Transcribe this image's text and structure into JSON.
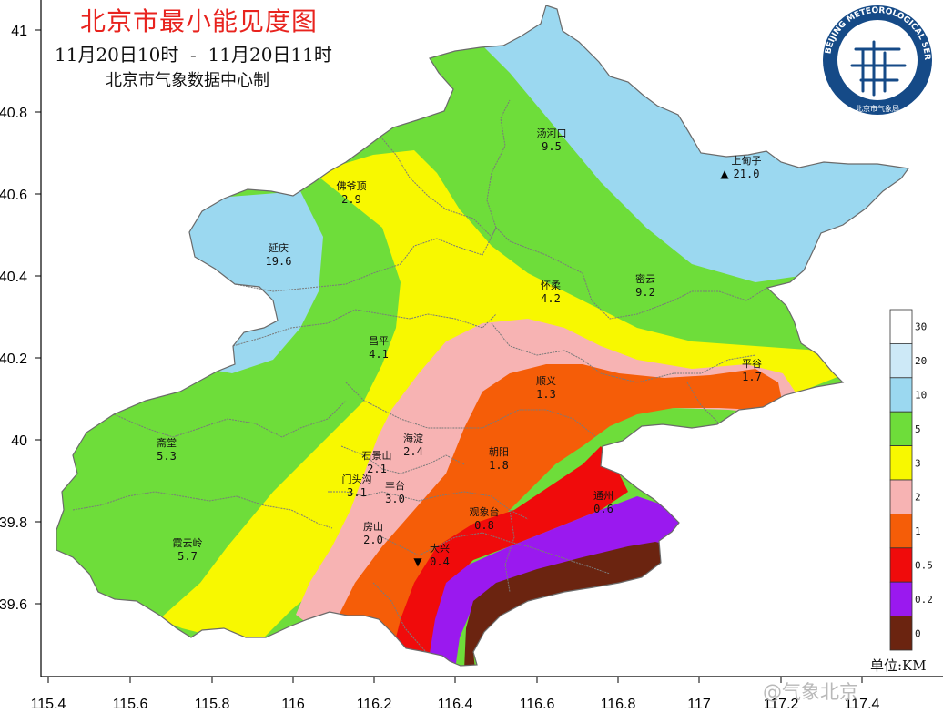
{
  "map": {
    "title": "北京市最小能见度图",
    "subtitle": "11月20日10时  -  11月20日11时",
    "credit": "北京市气象数据中心制",
    "unit_label": "单位:KM",
    "watermark": "@气象北京",
    "logo": {
      "text": "BEIJING METEOROLOGICAL SERVICE",
      "sub": "北京市气象局"
    },
    "x_axis_ticks": [
      "115.4",
      "115.6",
      "115.8",
      "116",
      "116.2",
      "116.4",
      "116.6",
      "116.8",
      "117",
      "117.2",
      "117.4"
    ],
    "y_axis_ticks": [
      "41",
      "40.8",
      "40.6",
      "40.4",
      "40.2",
      "40",
      "39.8",
      "39.6"
    ],
    "legend": [
      {
        "label": "30",
        "color": "#ffffff"
      },
      {
        "label": "20",
        "color": "#cde9f7"
      },
      {
        "label": "10",
        "color": "#9bd8f0"
      },
      {
        "label": "5",
        "color": "#6edd3a"
      },
      {
        "label": "3",
        "color": "#f8f800"
      },
      {
        "label": "2",
        "color": "#f7b3b3"
      },
      {
        "label": "1",
        "color": "#f55d08"
      },
      {
        "label": "0.5",
        "color": "#f00b0b"
      },
      {
        "label": "0.2",
        "color": "#9a19ef"
      },
      {
        "label": "0",
        "color": "#6b2410"
      }
    ],
    "stations": [
      {
        "name": "汤河口",
        "value": "9.5"
      },
      {
        "name": "上甸子",
        "value": "21.0",
        "marker": "▲"
      },
      {
        "name": "佛爷顶",
        "value": "2.9"
      },
      {
        "name": "延庆",
        "value": "19.6"
      },
      {
        "name": "怀柔",
        "value": "4.2"
      },
      {
        "name": "密云",
        "value": "9.2"
      },
      {
        "name": "昌平",
        "value": "4.1"
      },
      {
        "name": "平谷",
        "value": "1.7"
      },
      {
        "name": "顺义",
        "value": "1.3"
      },
      {
        "name": "斋堂",
        "value": "5.3"
      },
      {
        "name": "海淀",
        "value": "2.4"
      },
      {
        "name": "石景山",
        "value": "2.1"
      },
      {
        "name": "朝阳",
        "value": "1.8"
      },
      {
        "name": "门头沟",
        "value": "3.1"
      },
      {
        "name": "丰台",
        "value": "3.0"
      },
      {
        "name": "观象台",
        "value": "0.8"
      },
      {
        "name": "通州",
        "value": "0.6"
      },
      {
        "name": "房山",
        "value": "2.0"
      },
      {
        "name": "霞云岭",
        "value": "5.7"
      },
      {
        "name": "大兴",
        "value": "0.4",
        "marker": "▼"
      }
    ]
  }
}
